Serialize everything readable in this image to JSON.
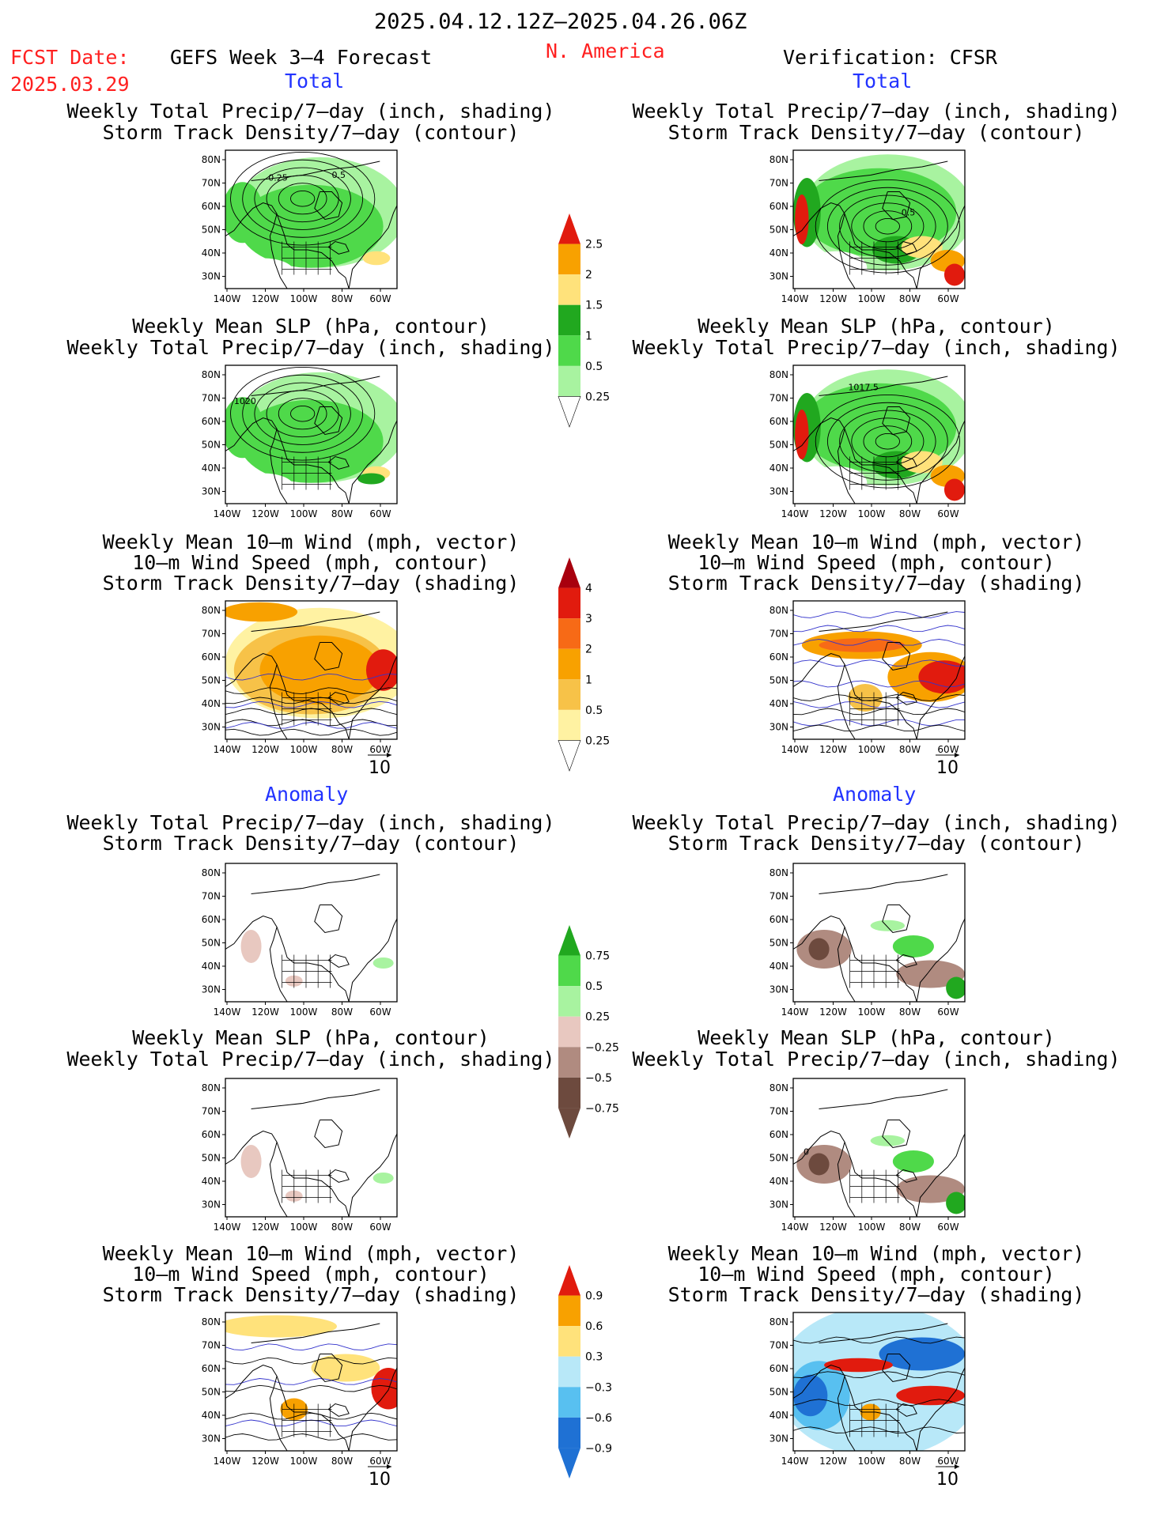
{
  "header": {
    "period": "2025.04.12.12Z–2025.04.26.06Z",
    "fcst_label": "FCST Date:",
    "fcst_date": "2025.03.29",
    "model": "GEFS Week 3–4 Forecast",
    "region": "N. America",
    "verification": "Verification: CFSR"
  },
  "sections": {
    "total_left": "Total",
    "total_right": "Total",
    "anomaly_left": "Anomaly",
    "anomaly_right": "Anomaly"
  },
  "panel_titles": {
    "precip_storm": [
      "Weekly Total Precip/7–day (inch, shading)",
      "Storm Track Density/7–day (contour)"
    ],
    "slp_precip": [
      "Weekly Mean SLP (hPa, contour)",
      "Weekly Total Precip/7–day (inch, shading)"
    ],
    "wind_storm": [
      "Weekly Mean 10–m Wind (mph, vector)",
      "10–m Wind Speed (mph, contour)",
      "Storm Track Density/7–day (shading)"
    ]
  },
  "axes": {
    "lat_ticks": [
      "80N",
      "70N",
      "60N",
      "50N",
      "40N",
      "30N"
    ],
    "lon_ticks": [
      "140W",
      "120W",
      "100W",
      "80W",
      "60W"
    ]
  },
  "vector_ref": "10",
  "contour_labels": {
    "p1_a": "0.25",
    "p1_b": "0.5",
    "p2_a": "0.5",
    "p3_a": "1020",
    "p4_a": "1017.5",
    "p8_a": "0"
  },
  "colorbars": [
    {
      "id": "precip_total",
      "labels": [
        "2.5",
        "2",
        "1.5",
        "1",
        "0.5",
        "0.25"
      ],
      "colors": [
        "#e11b0e",
        "#f8a100",
        "#ffe27b",
        "#21a81f",
        "#4fd94a",
        "#a8f3a0"
      ]
    },
    {
      "id": "storm_total",
      "labels": [
        "4",
        "3",
        "2",
        "1",
        "0.5",
        "0.25"
      ],
      "colors": [
        "#a8000e",
        "#e11b0e",
        "#f76a16",
        "#f8a100",
        "#f7c248",
        "#fff2a2"
      ]
    },
    {
      "id": "precip_anom",
      "labels": [
        "0.75",
        "0.5",
        "0.25",
        "−0.25",
        "−0.5",
        "−0.75"
      ],
      "colors": [
        "#21a81f",
        "#4fd94a",
        "#a8f3a0",
        "#e8c8c0",
        "#b08b80",
        "#6d4a3e"
      ]
    },
    {
      "id": "storm_anom",
      "labels": [
        "0.9",
        "0.6",
        "0.3",
        "−0.3",
        "−0.6",
        "−0.9"
      ],
      "colors": [
        "#e11b0e",
        "#f8a100",
        "#ffe27b",
        "#b8e8f8",
        "#58c0f0",
        "#1f71d4"
      ]
    }
  ],
  "colors": {
    "label_red": "#ff2020",
    "label_blue": "#2233ff",
    "land_outline": "#000000"
  }
}
